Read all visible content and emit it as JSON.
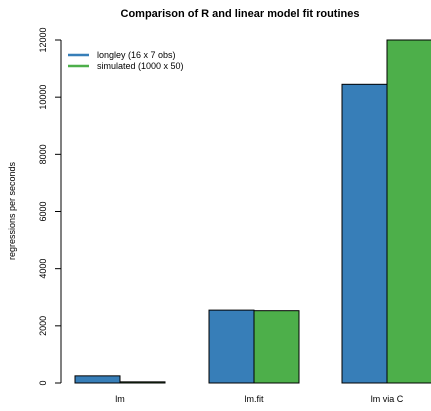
{
  "chart_data": {
    "type": "bar",
    "title": "Comparison of R and linear model fit routines",
    "xlabel": "",
    "ylabel": "regressions per seconds",
    "categories": [
      "lm",
      "lm.fit",
      "lm via C"
    ],
    "series": [
      {
        "name": "longley (16 x 7 obs)",
        "color": "#377eb8",
        "values": [
          250,
          2550,
          10450
        ]
      },
      {
        "name": "simulated (1000 x 50)",
        "color": "#4daf4a",
        "values": [
          40,
          2530,
          12000
        ]
      }
    ],
    "yticks": [
      0,
      2000,
      4000,
      6000,
      8000,
      10000,
      12000
    ],
    "ylim": [
      0,
      12000
    ],
    "grid": false,
    "legend_position": "top-left"
  }
}
